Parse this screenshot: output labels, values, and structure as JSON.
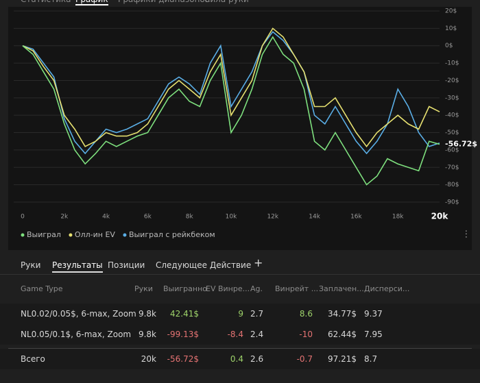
{
  "top_tabs": [
    "Статистика",
    "График",
    "Графики диапазонов",
    "Сила руки"
  ],
  "chart_data": {
    "type": "line",
    "x": [
      0,
      500,
      1000,
      1500,
      2000,
      2500,
      3000,
      3500,
      4000,
      4500,
      5000,
      5500,
      6000,
      6500,
      7000,
      7500,
      8000,
      8500,
      9000,
      9500,
      10000,
      10500,
      11000,
      11500,
      12000,
      12500,
      13000,
      13500,
      14000,
      14500,
      15000,
      15500,
      16000,
      16500,
      17000,
      17500,
      18000,
      18500,
      19000,
      19500,
      20000
    ],
    "series": [
      {
        "name": "Выиграл с рейкбеком",
        "color": "#5aaee6",
        "values": [
          0,
          -2,
          -10,
          -18,
          -42,
          -55,
          -62,
          -55,
          -48,
          -50,
          -48,
          -45,
          -42,
          -32,
          -22,
          -18,
          -22,
          -28,
          -10,
          0,
          -35,
          -25,
          -15,
          0,
          8,
          3,
          -5,
          -15,
          -40,
          -45,
          -35,
          -45,
          -55,
          -62,
          -55,
          -45,
          -25,
          -35,
          -50,
          -58,
          -56
        ]
      },
      {
        "name": "Олл-ин EV",
        "color": "#e6e070",
        "values": [
          0,
          -3,
          -12,
          -20,
          -40,
          -48,
          -58,
          -55,
          -50,
          -52,
          -52,
          -50,
          -45,
          -35,
          -25,
          -20,
          -25,
          -30,
          -15,
          -5,
          -40,
          -30,
          -20,
          0,
          10,
          5,
          -5,
          -15,
          -35,
          -35,
          -30,
          -40,
          -50,
          -58,
          -50,
          -45,
          -40,
          -45,
          -48,
          -35,
          -38
        ]
      },
      {
        "name": "Выиграл",
        "color": "#7ee07e",
        "values": [
          0,
          -5,
          -15,
          -25,
          -45,
          -60,
          -68,
          -62,
          -55,
          -58,
          -55,
          -52,
          -50,
          -40,
          -30,
          -25,
          -32,
          -35,
          -20,
          -10,
          -50,
          -40,
          -25,
          -5,
          5,
          -5,
          -10,
          -25,
          -55,
          -60,
          -50,
          -60,
          -70,
          -80,
          -75,
          -65,
          -68,
          -70,
          -72,
          -55,
          -56.72
        ],
        "value_labels": [
          null,
          null,
          null,
          null,
          null,
          null,
          null,
          null,
          null,
          null,
          null,
          null,
          null,
          null,
          null,
          null,
          null,
          null,
          null,
          null,
          null,
          null,
          null,
          null,
          null,
          null,
          null,
          null,
          null,
          null,
          null,
          null,
          null,
          null,
          null,
          null,
          null,
          null,
          null,
          null,
          "-56.72$"
        ]
      }
    ],
    "legend_order": [
      2,
      1,
      0
    ],
    "xlim": [
      0,
      20000
    ],
    "xticks": [
      0,
      {
        "value": 2000,
        "label": "2k"
      },
      {
        "value": 4000,
        "label": "4k"
      },
      {
        "value": 6000,
        "label": "6k"
      },
      {
        "value": 8000,
        "label": "8k"
      },
      {
        "value": 10000,
        "label": "10k"
      },
      {
        "value": 12000,
        "label": "12k"
      },
      {
        "value": 14000,
        "label": "14k"
      },
      {
        "value": 16000,
        "label": "16k"
      },
      {
        "value": 18000,
        "label": "18k"
      },
      {
        "value": 20000,
        "label": "20k"
      }
    ],
    "ylim": [
      -90,
      20
    ],
    "yticks": [
      {
        "value": 20,
        "label": "20$"
      },
      {
        "value": 10,
        "label": "10$"
      },
      {
        "value": 0,
        "label": "0$"
      },
      {
        "value": -10,
        "label": "-10$"
      },
      {
        "value": -20,
        "label": "-20$"
      },
      {
        "value": -30,
        "label": "-30$"
      },
      {
        "value": -40,
        "label": "-40$"
      },
      {
        "value": -50,
        "label": "-50$"
      },
      {
        "value": -60,
        "label": "-60$"
      },
      {
        "value": -70,
        "label": "-70$"
      },
      {
        "value": -80,
        "label": "-80$"
      },
      {
        "value": -90,
        "label": "-90$"
      }
    ],
    "grid": true
  },
  "bottom_tabs": [
    "Руки",
    "Результаты",
    "Позиции",
    "Следующее Действие",
    "+"
  ],
  "table": {
    "columns": [
      "Game Type",
      "Руки",
      "Выигранно",
      "EV Винре...",
      "Ag.",
      "Винрейт ...",
      "Заплачен...",
      "Дисперси..."
    ],
    "rows": [
      [
        "NL0.02/0.05$, 6-max, Zoom",
        "9.8k",
        "42.41$",
        "9",
        "2.7",
        "8.6",
        "34.77$",
        "9.37"
      ],
      [
        "NL0.05/0.1$, 6-max, Zoom",
        "9.8k",
        "-99.13$",
        "-8.4",
        "2.4",
        "-10",
        "62.44$",
        "7.95"
      ]
    ],
    "total": [
      "Всего",
      "20k",
      "-56.72$",
      "0.4",
      "2.6",
      "-0.7",
      "97.21$",
      "8.7"
    ]
  }
}
